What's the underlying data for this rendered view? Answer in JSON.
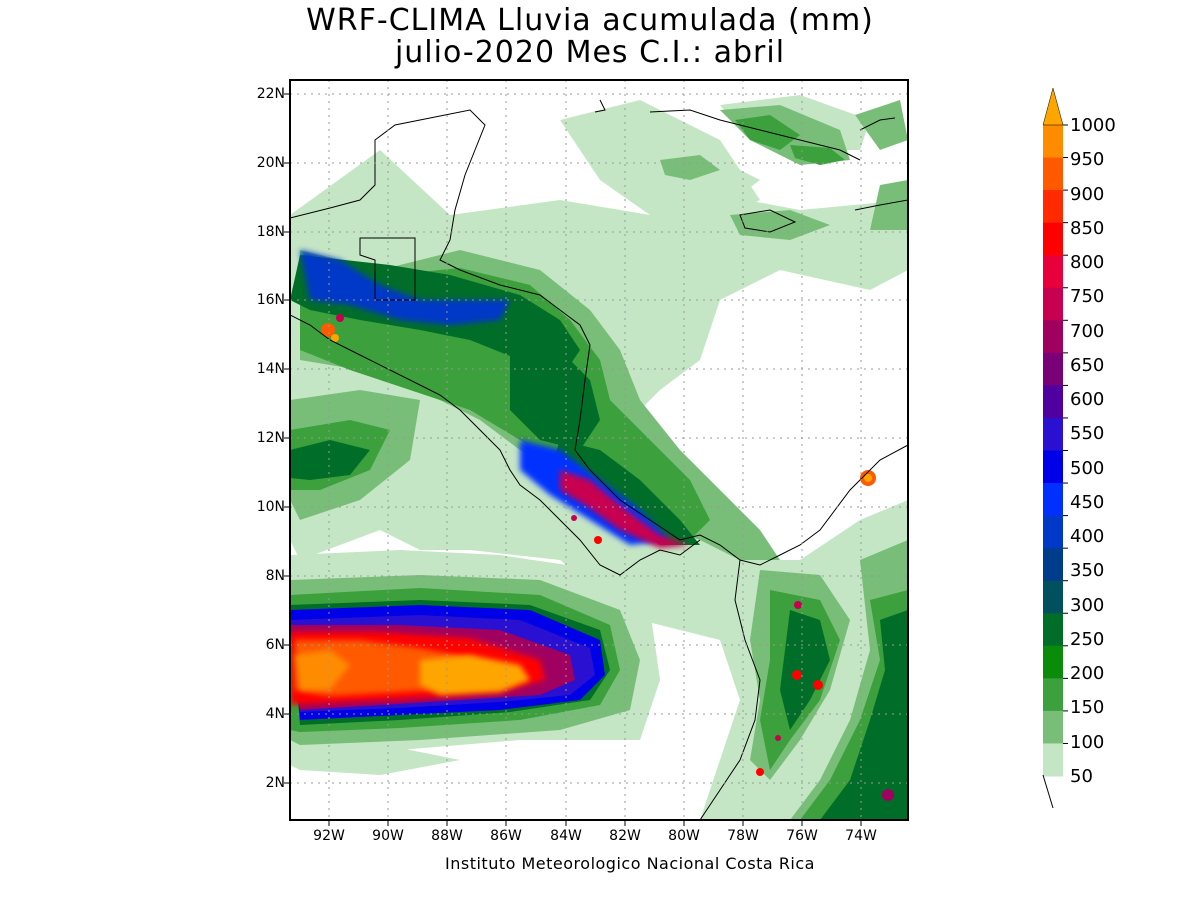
{
  "header": {
    "title_line1": "WRF-CLIMA Lluvia acumulada (mm)",
    "title_line2": "julio-2020 Mes C.I.: abril"
  },
  "map": {
    "lat_ticks": [
      "22N",
      "20N",
      "18N",
      "16N",
      "14N",
      "12N",
      "10N",
      "8N",
      "6N",
      "4N",
      "2N"
    ],
    "lon_ticks": [
      "92W",
      "90W",
      "88W",
      "86W",
      "84W",
      "82W",
      "80W",
      "78W",
      "76W",
      "74W"
    ]
  },
  "colorbar": {
    "labels": [
      "1000",
      "950",
      "900",
      "850",
      "800",
      "750",
      "700",
      "650",
      "600",
      "550",
      "500",
      "450",
      "400",
      "350",
      "300",
      "250",
      "200",
      "150",
      "100",
      "50"
    ],
    "colors": [
      "#ff8c00",
      "#ff5a00",
      "#ff2a00",
      "#ff0000",
      "#e8003c",
      "#c80050",
      "#a00060",
      "#7a0078",
      "#5000a0",
      "#2a10d0",
      "#0000e8",
      "#0030ff",
      "#0038c8",
      "#003c8c",
      "#005060",
      "#006e28",
      "#0a8c0a",
      "#3ca03c",
      "#78be78",
      "#c4e6c4"
    ],
    "arrow_color": "#ffa500"
  },
  "footer": {
    "credit": "Instituto Meteorologico Nacional Costa Rica"
  }
}
